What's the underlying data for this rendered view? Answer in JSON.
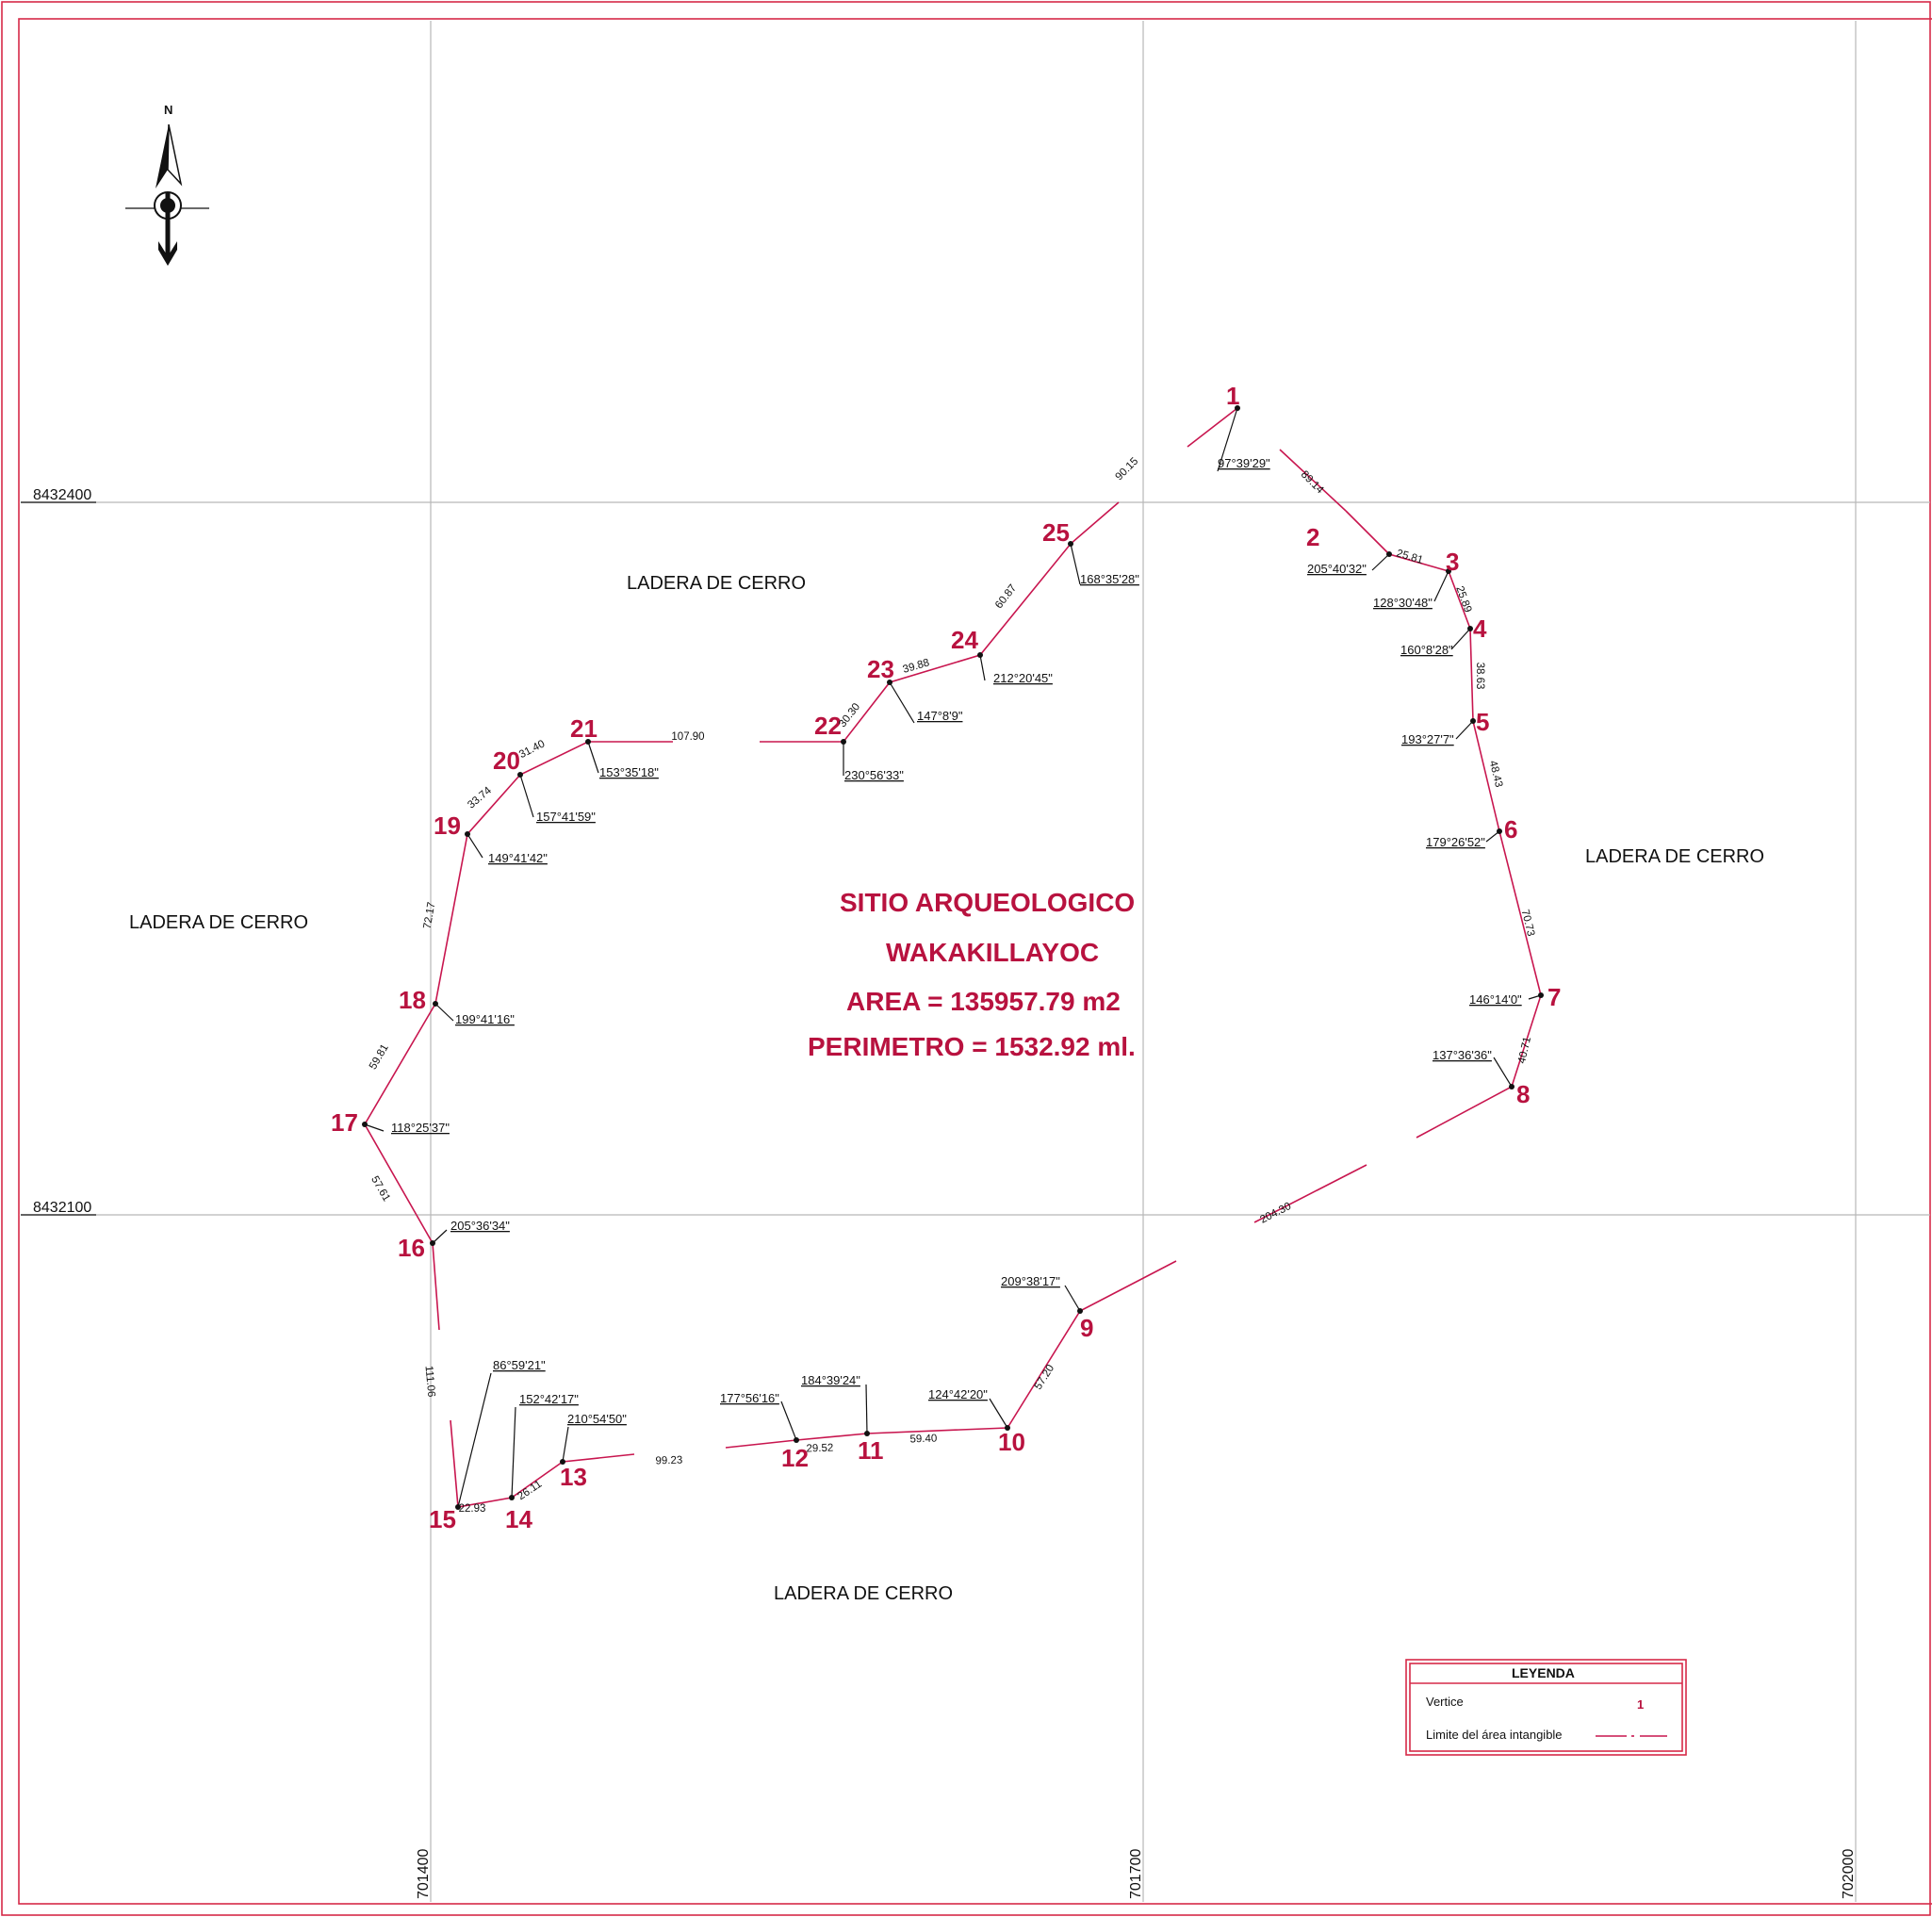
{
  "north_arrow": {
    "label": "N"
  },
  "grid": {
    "northings": [
      "8432400",
      "8432100"
    ],
    "eastings": [
      "701400",
      "701700",
      "702000"
    ]
  },
  "title_block": {
    "line1": "SITIO ARQUEOLOGICO",
    "line2": "WAKAKILLAYOC",
    "area": "AREA = 135957.79 m2",
    "perimeter": "PERIMETRO = 1532.92 ml."
  },
  "regions": [
    "LADERA DE CERRO",
    "LADERA DE CERRO",
    "LADERA DE CERRO",
    "LADERA DE CERRO"
  ],
  "vertices": [
    {
      "id": "1",
      "angle": "97°39'29\""
    },
    {
      "id": "2",
      "angle": "205°40'32\""
    },
    {
      "id": "3",
      "angle": "128°30'48\""
    },
    {
      "id": "4",
      "angle": "160°8'28\""
    },
    {
      "id": "5",
      "angle": "193°27'7\""
    },
    {
      "id": "6",
      "angle": "179°26'52\""
    },
    {
      "id": "7",
      "angle": "146°14'0\""
    },
    {
      "id": "8",
      "angle": "137°36'36\""
    },
    {
      "id": "9",
      "angle": "209°38'17\""
    },
    {
      "id": "10",
      "angle": "124°42'20\""
    },
    {
      "id": "11",
      "angle": "184°39'24\""
    },
    {
      "id": "12",
      "angle": "177°56'16\""
    },
    {
      "id": "13",
      "angle": "210°54'50\""
    },
    {
      "id": "14",
      "angle": "152°42'17\""
    },
    {
      "id": "15",
      "angle": "86°59'21\""
    },
    {
      "id": "16",
      "angle": "205°36'34\""
    },
    {
      "id": "17",
      "angle": "118°25'37\""
    },
    {
      "id": "18",
      "angle": "199°41'16\""
    },
    {
      "id": "19",
      "angle": "149°41'42\""
    },
    {
      "id": "20",
      "angle": "157°41'59\""
    },
    {
      "id": "21",
      "angle": "153°35'18\""
    },
    {
      "id": "22",
      "angle": "230°56'33\""
    },
    {
      "id": "23",
      "angle": "147°8'9\""
    },
    {
      "id": "24",
      "angle": "212°20'45\""
    },
    {
      "id": "25",
      "angle": "168°35'28\""
    }
  ],
  "distances": [
    "89.14",
    "25.81",
    "25.89",
    "38.63",
    "48.43",
    "70.73",
    "40.71",
    "204.30",
    "57.20",
    "59.40",
    "29.52",
    "99.23",
    "26.11",
    "22.93",
    "111.06",
    "57.61",
    "59.81",
    "72.17",
    "33.74",
    "31.40",
    "107.90",
    "30.30",
    "39.88",
    "60.87",
    "90.15"
  ],
  "legend": {
    "title": "LEYENDA",
    "vertex_label": "Vertice",
    "vertex_sample": "1",
    "boundary_label": "Limite del área intangible"
  },
  "colors": {
    "accent": "#b8123f",
    "border": "#d62a48",
    "grid": "#b8b8b8"
  }
}
